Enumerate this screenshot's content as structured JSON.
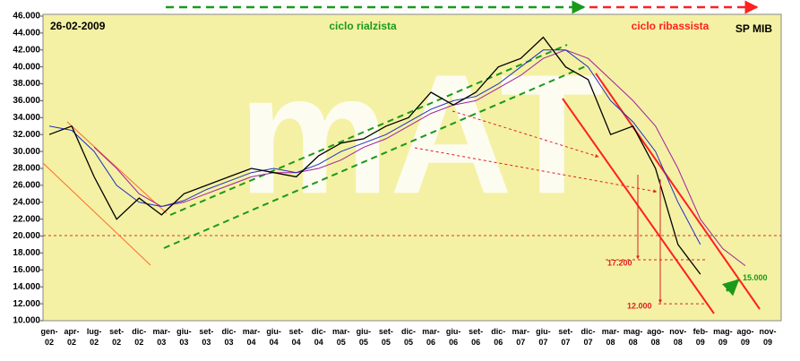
{
  "chart_data": {
    "type": "line",
    "title": "SP MIB",
    "date": "26-02-2009",
    "watermark": "mAT",
    "annotations_text": [
      "ciclo rialzista",
      "ciclo ribassista"
    ],
    "annotations": [
      {
        "value": 17200,
        "label": "17.200"
      },
      {
        "value": 12000,
        "label": "12.000"
      },
      {
        "value": 15000,
        "label": "15.000"
      }
    ],
    "categories": [
      "gen-02",
      "apr-02",
      "lug-02",
      "set-02",
      "dic-02",
      "mar-03",
      "giu-03",
      "set-03",
      "dic-03",
      "mar-04",
      "giu-04",
      "set-04",
      "dic-04",
      "mar-05",
      "giu-05",
      "set-05",
      "dic-05",
      "mar-06",
      "giu-06",
      "set-06",
      "dic-06",
      "mar-07",
      "giu-07",
      "set-07",
      "dic-07",
      "mar-08",
      "mag-08",
      "ago-08",
      "nov-08",
      "feb-09",
      "mag-09",
      "ago-09",
      "nov-09"
    ],
    "series": [
      {
        "color": "#000000",
        "values": [
          32000,
          33000,
          27000,
          22000,
          24500,
          22500,
          25000,
          26000,
          27000,
          28000,
          27500,
          27000,
          29500,
          31000,
          31500,
          33000,
          34000,
          37000,
          35500,
          37000,
          40000,
          41000,
          43500,
          40000,
          38500,
          32000,
          33000,
          28000,
          19000,
          15500,
          null,
          null,
          null
        ]
      },
      {
        "color": "#2030c0",
        "values": [
          33000,
          32500,
          30000,
          26000,
          24000,
          23500,
          24200,
          25500,
          26500,
          27500,
          28000,
          27500,
          28500,
          30000,
          31000,
          32000,
          33500,
          35000,
          36000,
          36500,
          38000,
          40000,
          42000,
          42000,
          40000,
          36000,
          33500,
          30000,
          24000,
          19000,
          null,
          null,
          null
        ]
      },
      {
        "color": "#a020a0",
        "values": [
          null,
          null,
          30500,
          28000,
          25000,
          23500,
          24000,
          25000,
          26000,
          27000,
          27500,
          27500,
          28000,
          29000,
          30500,
          31500,
          33000,
          34500,
          35500,
          36000,
          37500,
          39000,
          41000,
          42000,
          41000,
          38500,
          36000,
          33000,
          28000,
          22000,
          18500,
          16500,
          null
        ]
      }
    ],
    "ylim": [
      10000,
      46000
    ],
    "yticks": [
      {
        "value": 10000,
        "label": "10.000"
      },
      {
        "value": 12000,
        "label": "12.000"
      },
      {
        "value": 14000,
        "label": "14.000"
      },
      {
        "value": 16000,
        "label": "16.000"
      },
      {
        "value": 18000,
        "label": "18.000"
      },
      {
        "value": 20000,
        "label": "20.000"
      },
      {
        "value": 22000,
        "label": "22.000"
      },
      {
        "value": 24000,
        "label": "24.000"
      },
      {
        "value": 26000,
        "label": "26.000"
      },
      {
        "value": 28000,
        "label": "28.000"
      },
      {
        "value": 30000,
        "label": "30.000"
      },
      {
        "value": 32000,
        "label": "32.000"
      },
      {
        "value": 34000,
        "label": "34.000"
      },
      {
        "value": 36000,
        "label": "36.000"
      },
      {
        "value": 38000,
        "label": "38.000"
      },
      {
        "value": 40000,
        "label": "40.000"
      },
      {
        "value": 42000,
        "label": "42.000"
      },
      {
        "value": 44000,
        "label": "44.000"
      },
      {
        "value": 46000,
        "label": "46.000"
      }
    ],
    "grid": false
  }
}
